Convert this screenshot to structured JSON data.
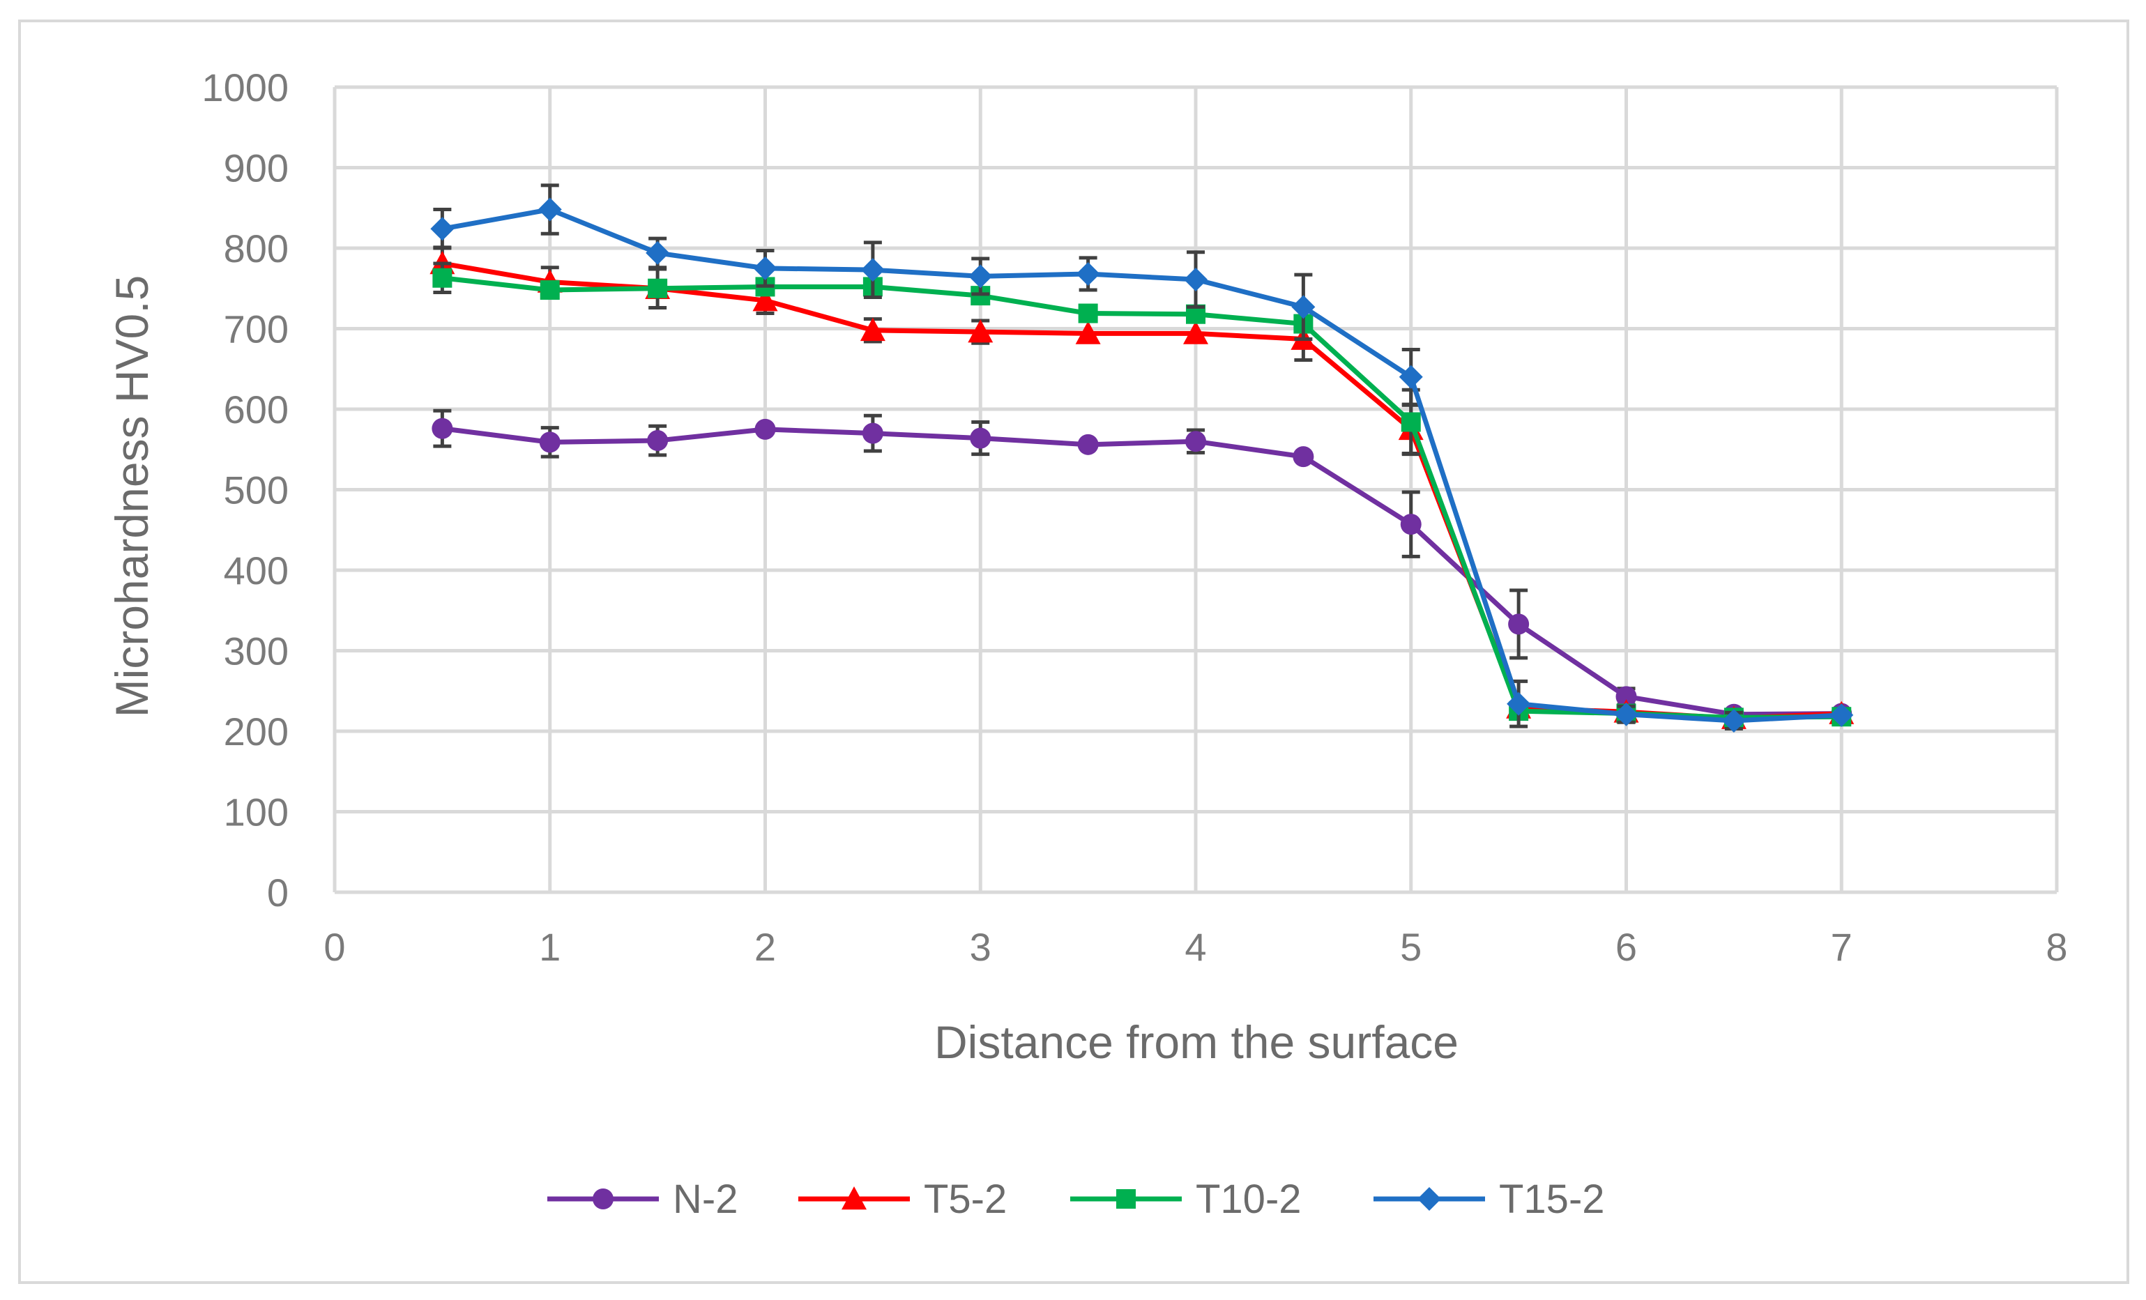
{
  "chart_data": {
    "type": "line",
    "title": "",
    "xlabel": "Distance from the surface",
    "ylabel": "Microhardness HV0.5",
    "xlim": [
      0,
      8
    ],
    "ylim": [
      0,
      1000
    ],
    "x_ticks": [
      "0",
      "1",
      "2",
      "3",
      "4",
      "5",
      "6",
      "7",
      "8"
    ],
    "y_ticks": [
      "0",
      "100",
      "200",
      "300",
      "400",
      "500",
      "600",
      "700",
      "800",
      "900",
      "1000"
    ],
    "grid": true,
    "legend_position": "bottom",
    "x": [
      0.5,
      1,
      1.5,
      2,
      2.5,
      3,
      3.5,
      4,
      4.5,
      5,
      5.5,
      6,
      6.5,
      7
    ],
    "series": [
      {
        "name": "N-2",
        "color": "#7030A0",
        "marker": "circle",
        "values": [
          576,
          559,
          561,
          575,
          570,
          564,
          556,
          560,
          541,
          457,
          333,
          243,
          221,
          222
        ],
        "errors": [
          22,
          18,
          18,
          0,
          22,
          20,
          0,
          14,
          0,
          40,
          42,
          10,
          0,
          0
        ]
      },
      {
        "name": "T5-2",
        "color": "#FF0000",
        "marker": "triangle",
        "values": [
          781,
          758,
          750,
          735,
          698,
          696,
          694,
          694,
          687,
          575,
          229,
          224,
          216,
          222
        ],
        "errors": [
          20,
          18,
          0,
          16,
          14,
          14,
          0,
          0,
          26,
          30,
          0,
          0,
          0,
          0
        ]
      },
      {
        "name": "T10-2",
        "color": "#00B050",
        "marker": "square",
        "values": [
          763,
          748,
          750,
          752,
          752,
          741,
          719,
          718,
          706,
          584,
          225,
          222,
          217,
          218
        ],
        "errors": [
          18,
          0,
          24,
          0,
          0,
          0,
          0,
          0,
          0,
          40,
          0,
          0,
          0,
          0
        ]
      },
      {
        "name": "T15-2",
        "color": "#1F6FC5",
        "marker": "diamond",
        "values": [
          824,
          848,
          794,
          775,
          773,
          765,
          768,
          761,
          727,
          640,
          234,
          221,
          213,
          220
        ],
        "errors": [
          24,
          30,
          18,
          22,
          34,
          22,
          20,
          34,
          40,
          34,
          28,
          10,
          10,
          0
        ]
      }
    ]
  }
}
